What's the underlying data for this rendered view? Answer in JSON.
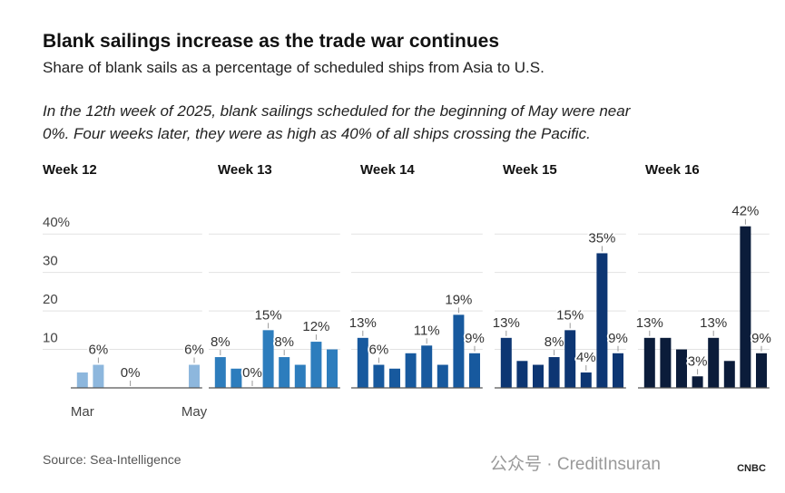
{
  "header": {
    "title": "Blank sailings increase as the trade war continues",
    "subtitle": "Share of blank sails as a percentage of scheduled ships from Asia to U.S.",
    "note_lines": [
      "In the 12th week of 2025, blank sailings scheduled for the beginning of May were near",
      "0%. Four weeks later, they were as high as 40% of all ships crossing the Pacific."
    ],
    "source": "Source: Sea-Intelligence",
    "watermark": "公众号 · CreditInsuran",
    "logo": "CNBC"
  },
  "chart_data": [
    {
      "type": "bar",
      "title": "Week 12",
      "color": "#8db7dd",
      "categories": [
        "Mar",
        null,
        null,
        null,
        null,
        null,
        null,
        "May"
      ],
      "values": [
        4,
        6,
        null,
        0,
        null,
        null,
        null,
        6
      ],
      "value_labels": [
        null,
        "6%",
        null,
        "0%",
        null,
        null,
        null,
        "6%"
      ],
      "ylim": [
        0,
        45
      ],
      "yticks": [
        10,
        20,
        30,
        {
          "value": 40,
          "label": "40%"
        }
      ],
      "grid": true
    },
    {
      "type": "bar",
      "title": "Week 13",
      "color": "#2d7dbd",
      "values": [
        8,
        5,
        0,
        15,
        8,
        6,
        12,
        10
      ],
      "value_labels": [
        "8%",
        null,
        "0%",
        "15%",
        "8%",
        null,
        "12%",
        null
      ]
    },
    {
      "type": "bar",
      "title": "Week 14",
      "color": "#17599e",
      "values": [
        13,
        6,
        5,
        9,
        11,
        6,
        19,
        9
      ],
      "value_labels": [
        "13%",
        "6%",
        null,
        null,
        "11%",
        null,
        "19%",
        "9%"
      ]
    },
    {
      "type": "bar",
      "title": "Week 15",
      "color": "#0d3673",
      "values": [
        13,
        7,
        6,
        8,
        15,
        4,
        35,
        9
      ],
      "value_labels": [
        "13%",
        null,
        null,
        "8%",
        "15%",
        "4%",
        "35%",
        "9%"
      ]
    },
    {
      "type": "bar",
      "title": "Week 16",
      "color": "#0b1c3a",
      "values": [
        13,
        13,
        10,
        3,
        13,
        7,
        42,
        9
      ],
      "value_labels": [
        "13%",
        null,
        null,
        "3%",
        "13%",
        null,
        "42%",
        "9%"
      ]
    }
  ]
}
